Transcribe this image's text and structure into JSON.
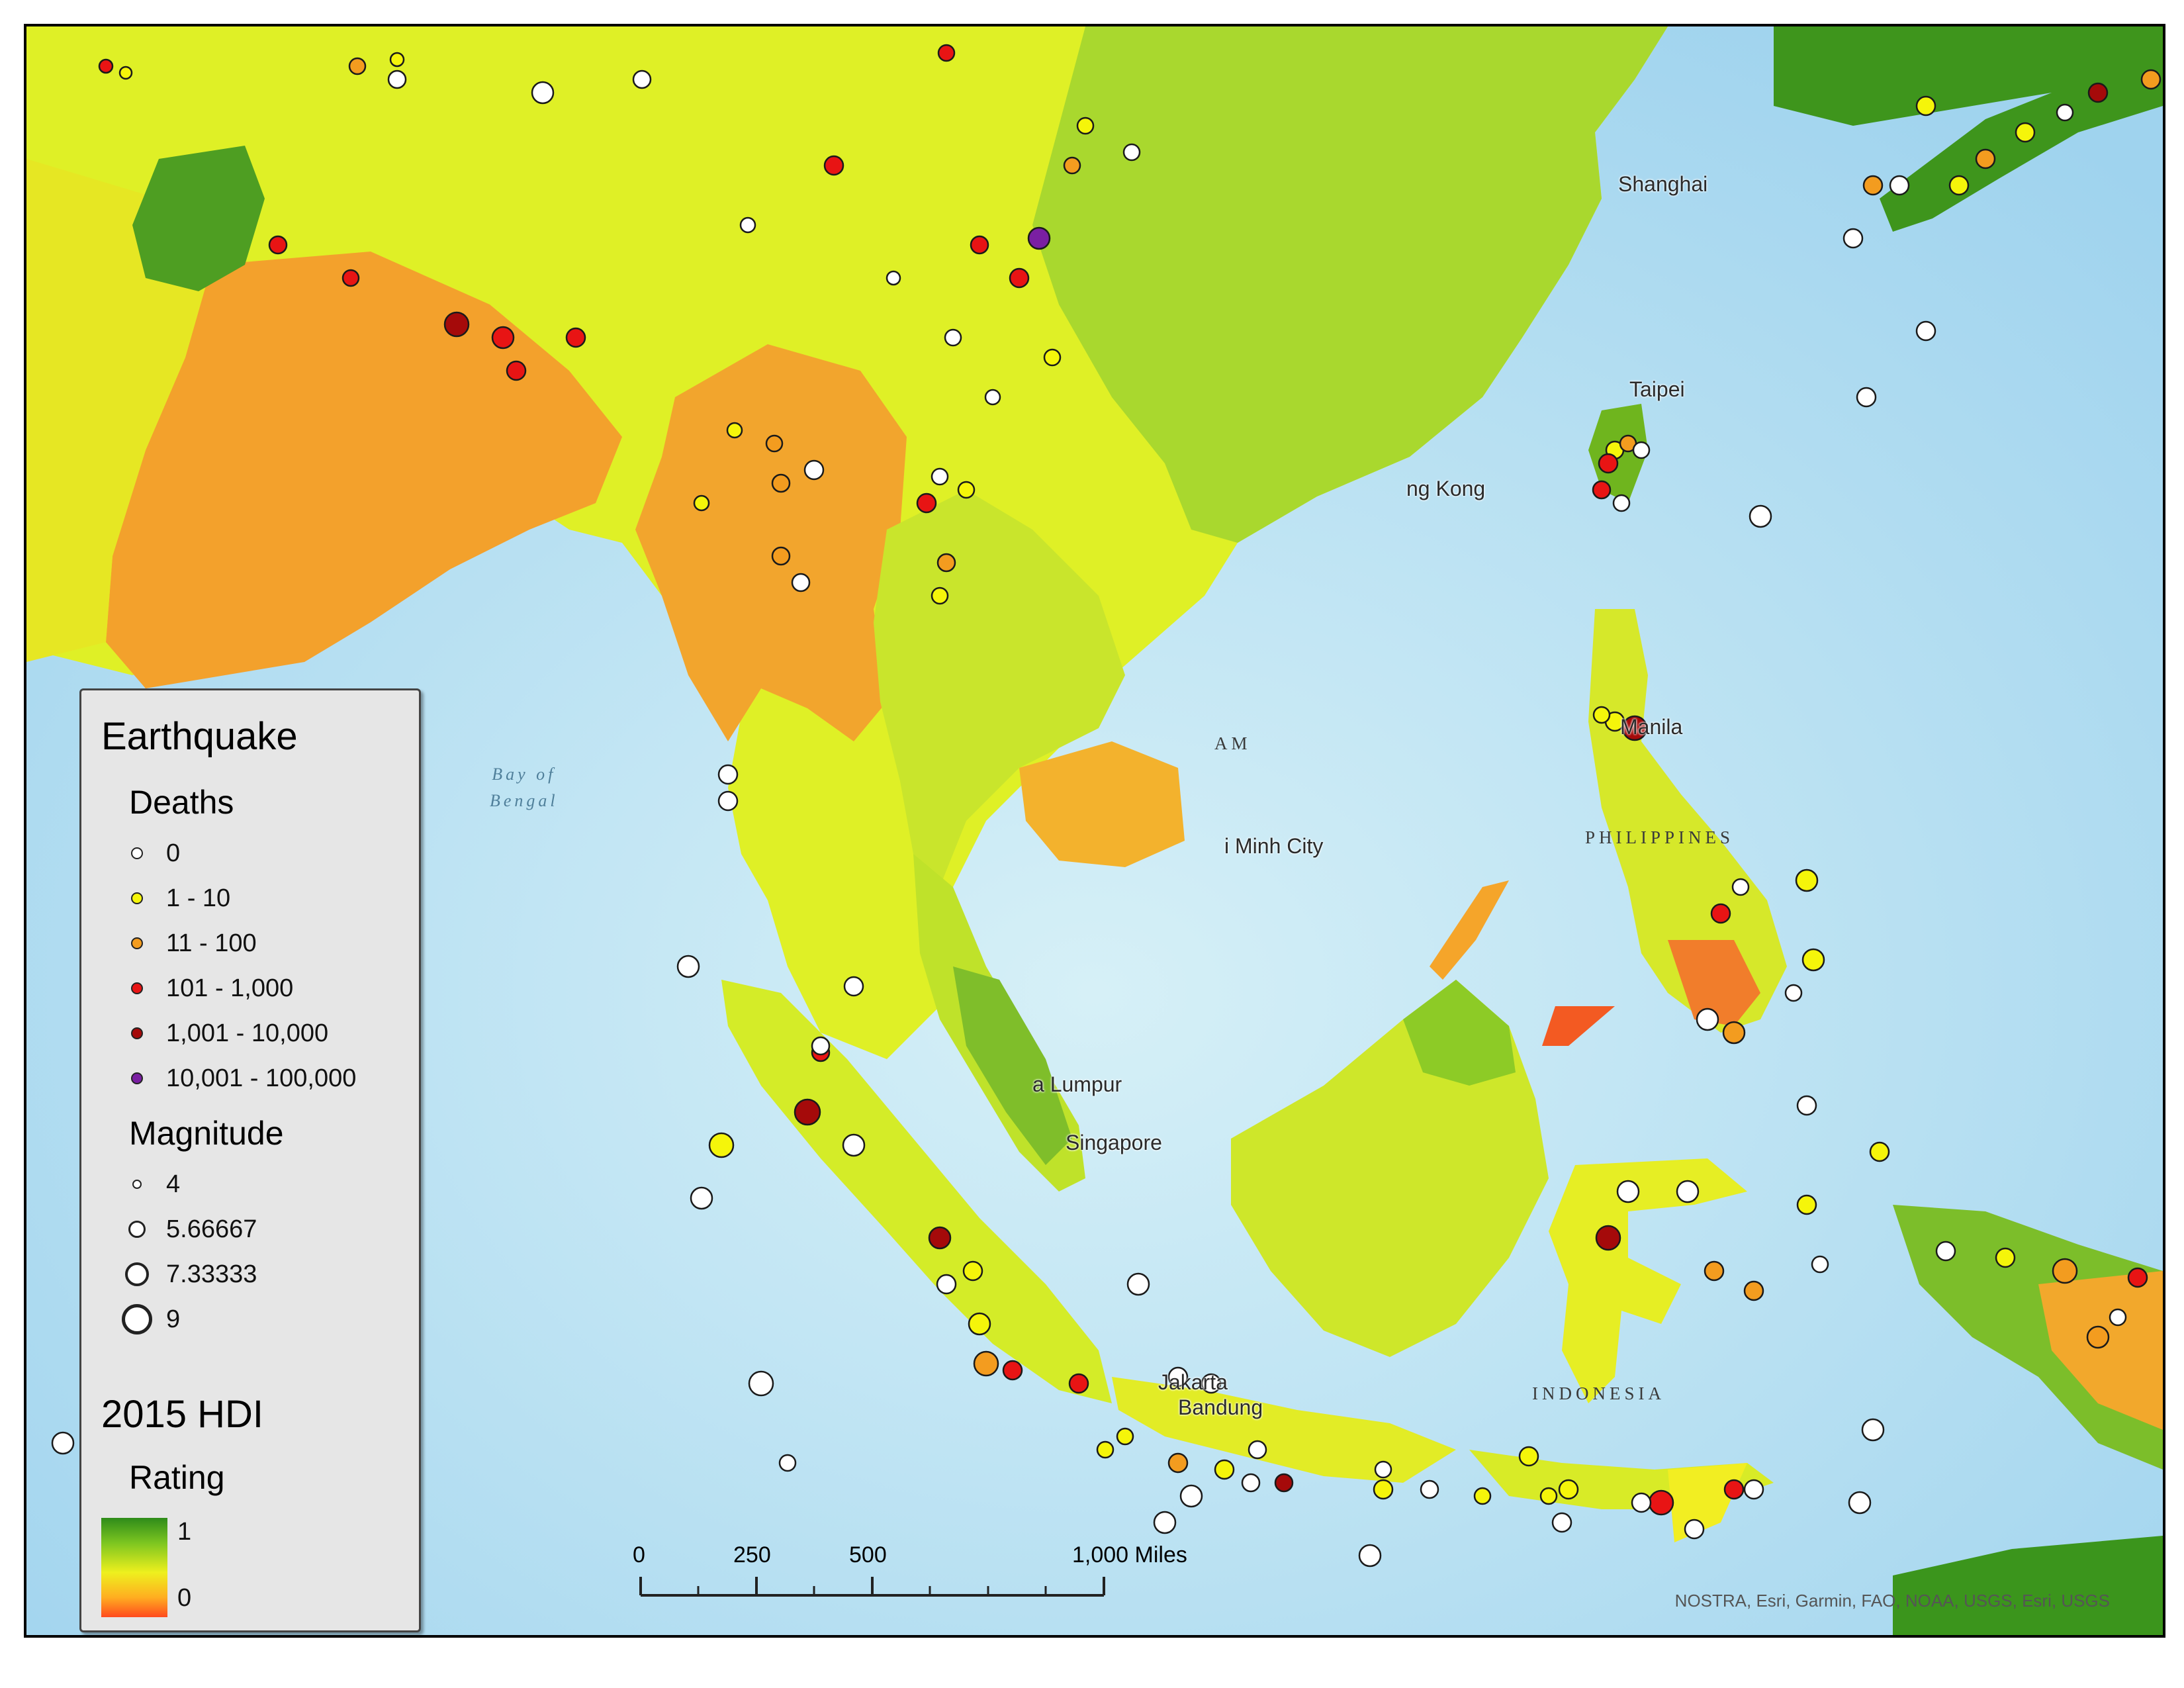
{
  "legend": {
    "title": "Earthquake",
    "deaths_heading": "Deaths",
    "deaths_classes": [
      {
        "label": "0",
        "color": "#ffffff"
      },
      {
        "label": "1 - 10",
        "color": "#f5f50a"
      },
      {
        "label": "11 - 100",
        "color": "#f39c1f"
      },
      {
        "label": "101 - 1,000",
        "color": "#e81414"
      },
      {
        "label": "1,001 - 10,000",
        "color": "#a50a0a"
      },
      {
        "label": "10,001 - 100,000",
        "color": "#7a1fa2"
      }
    ],
    "magnitude_heading": "Magnitude",
    "magnitude_classes": [
      "4",
      "5.66667",
      "7.33333",
      "9"
    ],
    "hdi_title": "2015 HDI",
    "hdi_heading": "Rating",
    "hdi_high": "1",
    "hdi_low": "0",
    "hdi_colors": [
      "#2e8b1a",
      "#7cc520",
      "#eef01e",
      "#ffae20",
      "#ff4a1e"
    ]
  },
  "map_labels": {
    "cities": [
      "Shanghai",
      "Taipei",
      "ng Kong",
      "Manila",
      "i Minh City",
      "a Lumpur",
      "Singapore",
      "Jakarta",
      "Bandung"
    ],
    "countries": [
      "PHILIPPINES",
      "INDONESIA",
      "AM"
    ],
    "water": [
      "Bay of",
      "Bengal"
    ]
  },
  "scale_bar": {
    "ticks": [
      "0",
      "250",
      "500",
      "1,000 Miles"
    ]
  },
  "attribution": "NOSTRA, Esri, Garmin, FAO, NOAA, USGS, Esri, USGS",
  "colors": {
    "ocean": "#cdebf4",
    "deep_ocean": "#a8d8ef"
  }
}
